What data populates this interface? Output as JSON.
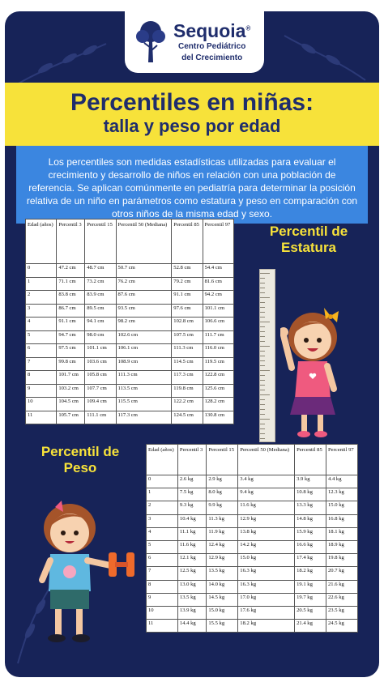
{
  "brand": {
    "name": "Sequoia",
    "registered": "®",
    "subtitle_line1": "Centro Pediátrico",
    "subtitle_line2": "del Crecimiento"
  },
  "title": {
    "line1": "Percentiles en niñas:",
    "line2": "talla y peso por edad"
  },
  "description": "Los percentiles son medidas estadísticas utilizadas para evaluar el crecimiento y desarrollo de niños en relación con una población de referencia. Se aplican comúnmente en pediatría para determinar la posición relativa de un niño en parámetros como estatura y peso en comparación con otros niños de la misma edad y sexo.",
  "height_section": {
    "title_line1": "Percentil de",
    "title_line2": "Estatura",
    "headers": [
      "Edad (años)",
      "Percentil 3",
      "Percentil 15",
      "Percentil 50 (Mediana)",
      "Percentil 85",
      "Percentil 97"
    ],
    "rows": [
      [
        "0",
        "47.2 cm",
        "48.7 cm",
        "50.7 cm",
        "52.8 cm",
        "54.4 cm"
      ],
      [
        "1",
        "71.1 cm",
        "73.2 cm",
        "76.2 cm",
        "79.2 cm",
        "81.6 cm"
      ],
      [
        "2",
        "83.8 cm",
        "83.9 cm",
        "87.6 cm",
        "91.1 cm",
        "94.2 cm"
      ],
      [
        "3",
        "86.7 cm",
        "89.5 cm",
        "93.5 cm",
        "97.6 cm",
        "101.1 cm"
      ],
      [
        "4",
        "91.1 cm",
        "94.1 cm",
        "98.2 cm",
        "102.8 cm",
        "106.6 cm"
      ],
      [
        "5",
        "94.7 cm",
        "98.0 cm",
        "102.6 cm",
        "107.5 cm",
        "111.7 cm"
      ],
      [
        "6",
        "97.5 cm",
        "101.1 cm",
        "106.1 cm",
        "111.3 cm",
        "116.0 cm"
      ],
      [
        "7",
        "99.8 cm",
        "103.6 cm",
        "108.9 cm",
        "114.5 cm",
        "119.5 cm"
      ],
      [
        "8",
        "101.7 cm",
        "105.8 cm",
        "111.3 cm",
        "117.3 cm",
        "122.8 cm"
      ],
      [
        "9",
        "103.2 cm",
        "107.7 cm",
        "113.5 cm",
        "119.8 cm",
        "125.6 cm"
      ],
      [
        "10",
        "104.5 cm",
        "109.4 cm",
        "115.5 cm",
        "122.2 cm",
        "128.2 cm"
      ],
      [
        "11",
        "105.7 cm",
        "111.1 cm",
        "117.3 cm",
        "124.5 cm",
        "130.8 cm"
      ]
    ]
  },
  "weight_section": {
    "title_line1": "Percentil de",
    "title_line2": "Peso",
    "headers": [
      "Edad (años)",
      "Percentil 3",
      "Percentil 15",
      "Percentil 50 (Mediana)",
      "Percentil 85",
      "Percentil 97"
    ],
    "rows": [
      [
        "0",
        "2.6 kg",
        "2.9 kg",
        "3.4 kg",
        "3.9 kg",
        "4.4 kg"
      ],
      [
        "1",
        "7.5 kg",
        "8.0 kg",
        "9.4 kg",
        "10.8 kg",
        "12.3 kg"
      ],
      [
        "2",
        "9.3 kg",
        "9.9 kg",
        "11.6 kg",
        "13.3 kg",
        "15.0 kg"
      ],
      [
        "3",
        "10.4 kg",
        "11.3 kg",
        "12.9 kg",
        "14.8 kg",
        "16.8 kg"
      ],
      [
        "4",
        "11.1 kg",
        "11.9 kg",
        "13.8 kg",
        "15.9 kg",
        "18.1 kg"
      ],
      [
        "5",
        "11.6 kg",
        "12.4 kg",
        "14.2 kg",
        "16.6 kg",
        "18.9 kg"
      ],
      [
        "6",
        "12.1 kg",
        "12.9 kg",
        "15.0 kg",
        "17.4 kg",
        "19.8 kg"
      ],
      [
        "7",
        "12.5 kg",
        "13.5 kg",
        "16.3 kg",
        "18.2 kg",
        "20.7 kg"
      ],
      [
        "8",
        "13.0 kg",
        "14.0 kg",
        "16.3 kg",
        "19.1 kg",
        "21.6 kg"
      ],
      [
        "9",
        "13.5 kg",
        "14.5 kg",
        "17.0 kg",
        "19.7 kg",
        "22.6 kg"
      ],
      [
        "10",
        "13.9 kg",
        "15.0 kg",
        "17.6 kg",
        "20.5 kg",
        "23.5 kg"
      ],
      [
        "11",
        "14.4 kg",
        "15.5 kg",
        "18.2 kg",
        "21.4 kg",
        "24.5 kg"
      ]
    ]
  },
  "colors": {
    "background_navy": "#172358",
    "accent_yellow": "#f7e23a",
    "info_blue": "#3b86e0"
  },
  "illustrations": [
    "girl-waving-icon",
    "height-ruler-icon",
    "girl-lifting-dumbbell-icon"
  ]
}
